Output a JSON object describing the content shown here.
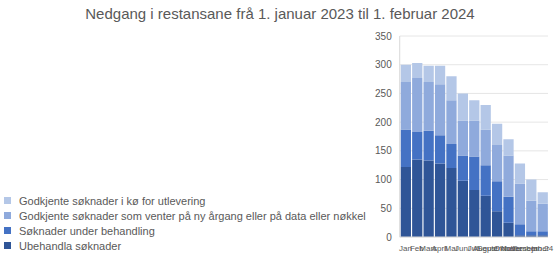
{
  "chart_data": {
    "type": "bar",
    "title": "Nedgang i restansane frå 1. januar 2023 til 1. februar 2024",
    "categories": [
      "Jan",
      "Feb",
      "Mars",
      "April",
      "Mai",
      "Juni",
      "Juli",
      "August",
      "September",
      "Oktober",
      "November",
      "Desember",
      "jan.24"
    ],
    "series": [
      {
        "name": "Ubehandla søknader",
        "color": "#2f5597",
        "values": [
          122,
          135,
          133,
          128,
          120,
          98,
          82,
          72,
          45,
          25,
          3,
          3,
          3
        ]
      },
      {
        "name": "Søknader under behandling",
        "color": "#4472c4",
        "values": [
          65,
          48,
          52,
          49,
          42,
          44,
          58,
          53,
          52,
          45,
          19,
          7,
          7
        ]
      },
      {
        "name": "Godkjente søknader som venter på ny årgang eller på data eller nøkkel",
        "color": "#8faadc",
        "values": [
          83,
          94,
          85,
          89,
          76,
          61,
          63,
          62,
          63,
          72,
          71,
          53,
          48
        ]
      },
      {
        "name": "Godkjente søknader i kø for utlevering",
        "color": "#b4c7e7",
        "values": [
          30,
          26,
          28,
          32,
          42,
          47,
          35,
          43,
          37,
          28,
          35,
          37,
          20
        ]
      }
    ],
    "ylim": [
      0,
      350
    ],
    "yticks": [
      0,
      50,
      100,
      150,
      200,
      250,
      300,
      350
    ],
    "stacked": true,
    "grid": true,
    "legend": "bottom-left"
  }
}
